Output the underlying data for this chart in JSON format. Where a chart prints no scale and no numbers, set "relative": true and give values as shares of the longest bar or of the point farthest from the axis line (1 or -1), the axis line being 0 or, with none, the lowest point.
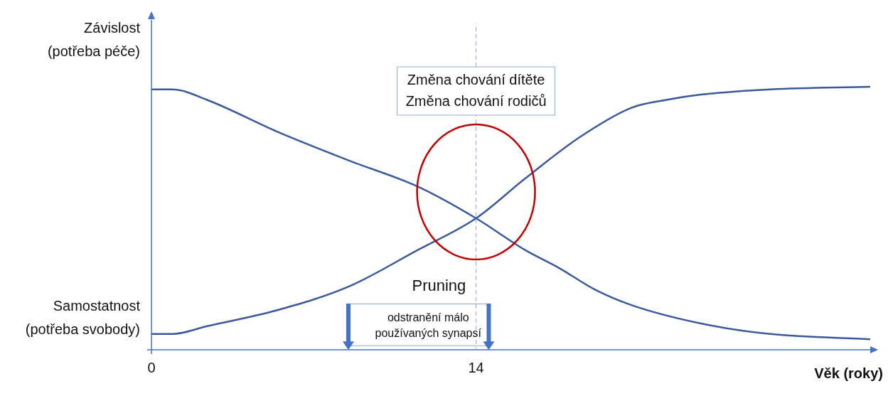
{
  "chart_data": {
    "type": "line",
    "relative": true,
    "xlabel": "Věk (roky)",
    "xlim": [
      0,
      31
    ],
    "xticks": [
      0,
      14
    ],
    "grid": false,
    "legend": false,
    "marker": "none",
    "line_style": "solid",
    "series": [
      {
        "color": "#3a5a9c",
        "x": [
          0,
          0.9,
          2.4,
          5.4,
          8.5,
          11.5,
          14,
          16.1,
          17.6,
          19.1,
          20.7,
          23.7,
          26.7,
          31
        ],
        "values": [
          0.99,
          0.99,
          0.95,
          0.83,
          0.72,
          0.62,
          0.5,
          0.38,
          0.31,
          0.23,
          0.17,
          0.1,
          0.06,
          0.04
        ]
      },
      {
        "color": "#3a5a9c",
        "x": [
          0,
          0.9,
          2.4,
          5.4,
          8.5,
          11.5,
          14,
          16.1,
          18.5,
          20.7,
          22.2,
          23.7,
          26.7,
          31
        ],
        "values": [
          0.06,
          0.06,
          0.09,
          0.15,
          0.24,
          0.38,
          0.5,
          0.65,
          0.81,
          0.92,
          0.95,
          0.97,
          0.99,
          1
        ]
      }
    ],
    "ref_lines": [
      {
        "axis": "x",
        "value": 14,
        "label": "Změna chování dítěte\nZměna chování rodičů",
        "color": "#8faadc",
        "line_style": "dashed"
      }
    ],
    "annotations": [
      "Závislost\n(potřeba péče)",
      "Samostatnost\n(potřeba svobody)",
      "Pruning",
      "odstranění málo\npoužívaných synapsí"
    ]
  }
}
